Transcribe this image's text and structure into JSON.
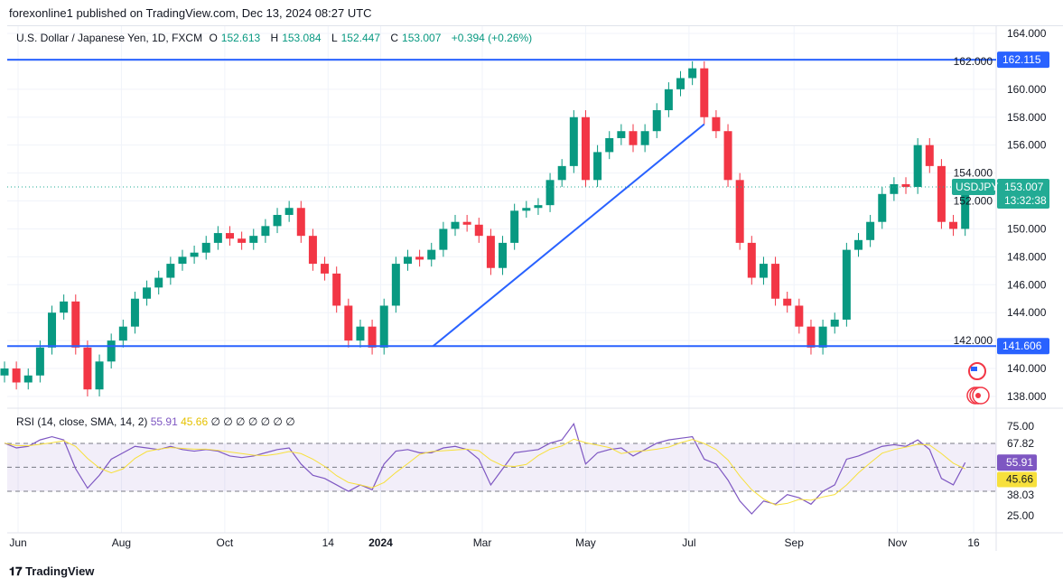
{
  "publisher_line": "forexonline1 published on TradingView.com, Dec 13, 2024 08:27 UTC",
  "legend": {
    "symbol": "U.S. Dollar / Japanese Yen, 1D, FXCM",
    "open_label": "O",
    "open": "152.613",
    "high_label": "H",
    "high": "153.084",
    "low_label": "L",
    "low": "152.447",
    "close_label": "C",
    "close": "153.007",
    "change": "+0.394 (+0.26%)"
  },
  "rsi_legend": {
    "label": "RSI (14, close, SMA, 14, 2)",
    "rsi": "55.91",
    "sma": "45.66",
    "hidden_values": "∅ ∅ ∅ ∅ ∅ ∅ ∅"
  },
  "footer_logo": "TradingView",
  "colors": {
    "up": "#089981",
    "down": "#f23645",
    "level_line": "#2962ff",
    "rsi": "#7e57c2",
    "rsi_sma": "#f7e03c",
    "price_label": "#22ab94"
  },
  "chart_data": [
    {
      "type": "candlestick",
      "title": "U.S. Dollar / Japanese Yen, 1D, FXCM",
      "note_start_week": "2023-05-22",
      "ylim": [
        137,
        165
      ],
      "y_ticks": [
        "138.000",
        "140.000",
        "142.000",
        "144.000",
        "146.000",
        "148.000",
        "150.000",
        "152.000",
        "154.000",
        "156.000",
        "158.000",
        "160.000",
        "162.000",
        "164.000"
      ],
      "x_ticks": [
        {
          "label": "Jun",
          "date": "2023-06-01"
        },
        {
          "label": "Aug",
          "date": "2023-08-01"
        },
        {
          "label": "Oct",
          "date": "2023-10-01"
        },
        {
          "label": "14",
          "date": "2023-12-01"
        },
        {
          "label": "2024",
          "date": "2024-01-01"
        },
        {
          "label": "Mar",
          "date": "2024-03-01"
        },
        {
          "label": "May",
          "date": "2024-05-01"
        },
        {
          "label": "Jul",
          "date": "2024-07-01"
        },
        {
          "label": "Sep",
          "date": "2024-09-01"
        },
        {
          "label": "Nov",
          "date": "2024-11-01"
        },
        {
          "label": "16",
          "date": "2024-12-16"
        }
      ],
      "weekly_close": [
        140,
        139,
        139.5,
        141.5,
        144,
        144.8,
        141.5,
        138.5,
        140.5,
        142,
        143,
        145,
        145.8,
        146.5,
        147.5,
        148,
        148.3,
        149,
        149.7,
        149.3,
        149,
        149.5,
        150.2,
        151,
        151.5,
        149.5,
        147.5,
        146.8,
        144.5,
        142,
        143,
        141.5,
        144.5,
        147.5,
        148,
        147.8,
        148.5,
        150,
        150.5,
        150.3,
        149.5,
        147.2,
        149,
        151.3,
        151.5,
        151.7,
        153.5,
        154.5,
        158,
        153.5,
        155.5,
        156.5,
        157,
        156,
        157,
        158.5,
        160,
        160.8,
        161.5,
        158,
        157,
        153.5,
        149,
        146.5,
        147.5,
        145,
        144.5,
        143,
        141.5,
        143,
        143.5,
        148.5,
        149.2,
        150.5,
        152.5,
        153.2,
        153,
        156,
        154.5,
        150.5,
        150,
        153.007
      ],
      "horizontal_levels": [
        {
          "value": 162.115,
          "label": "162.115"
        },
        {
          "value": 141.606,
          "label": "141.606"
        }
      ],
      "trendline": {
        "from": {
          "date": "2024-02-01",
          "price": 141.606
        },
        "to": {
          "date": "2024-07-10",
          "price": 157.5
        }
      },
      "last_price": {
        "symbol": "USDJPY",
        "value": "153.007",
        "countdown": "13:32:38"
      }
    },
    {
      "type": "line",
      "title": "RSI (14, close, SMA, 14, 2)",
      "ylim": [
        25,
        75
      ],
      "y_ticks": [
        "75.00",
        "67.82",
        "38.03",
        "25.00"
      ],
      "bands": [
        67.82,
        38.03
      ],
      "rsi": [
        68,
        65,
        66,
        70,
        72,
        70,
        52,
        40,
        48,
        58,
        62,
        66,
        65,
        64,
        66,
        64,
        63,
        64,
        63,
        60,
        59,
        60,
        62,
        64,
        65,
        55,
        48,
        46,
        42,
        38,
        42,
        39,
        55,
        63,
        64,
        62,
        62,
        65,
        66,
        64,
        58,
        42,
        52,
        62,
        63,
        64,
        68,
        70,
        80,
        55,
        62,
        64,
        65,
        60,
        64,
        68,
        70,
        71,
        72,
        58,
        55,
        45,
        32,
        24,
        32,
        30,
        36,
        34,
        30,
        38,
        42,
        58,
        60,
        63,
        66,
        67,
        66,
        70,
        64,
        46,
        42,
        55.91
      ],
      "rsi_label": "55.91",
      "sma_label": "45.66"
    }
  ]
}
